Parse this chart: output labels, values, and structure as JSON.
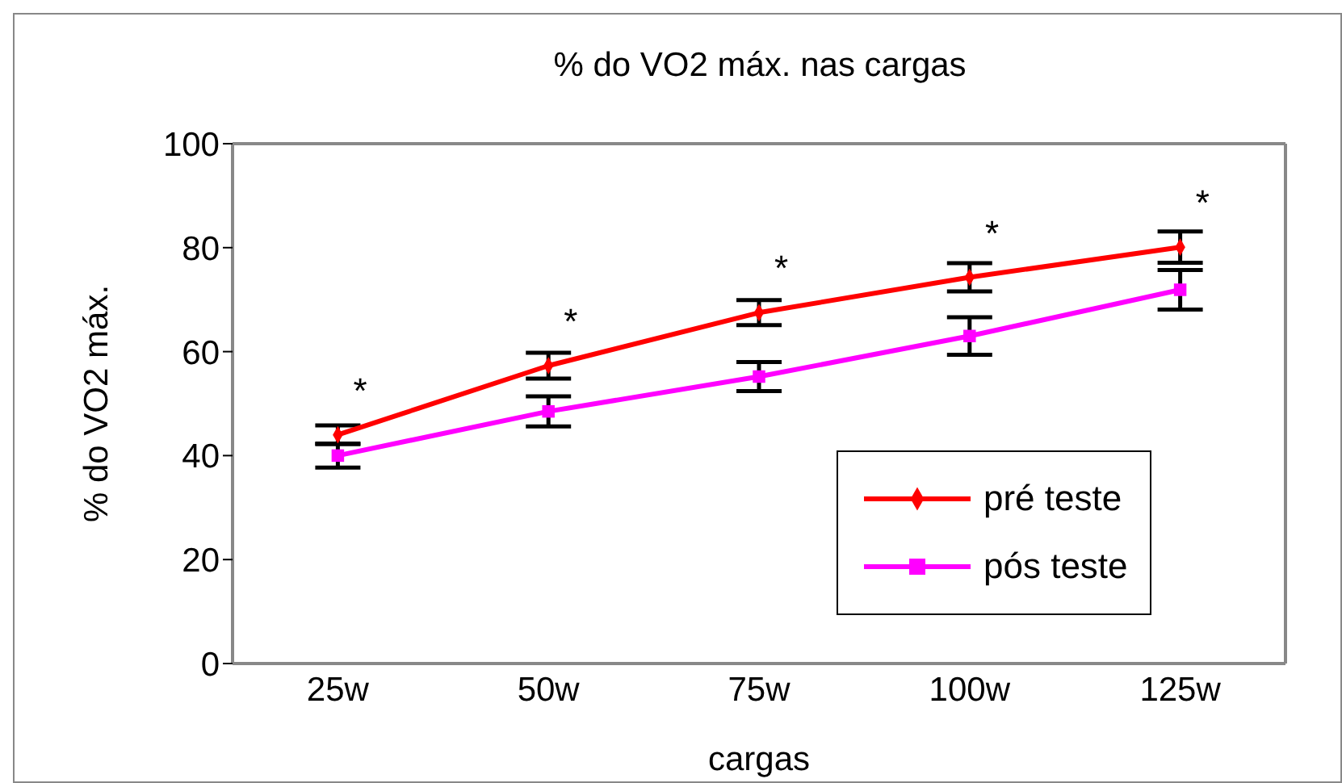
{
  "chart_data": {
    "type": "line",
    "title": "% do VO2 máx. nas cargas",
    "xlabel": "cargas",
    "ylabel": "% do VO2 máx.",
    "categories": [
      "25w",
      "50w",
      "75w",
      "100w",
      "125w"
    ],
    "ylim": [
      0,
      100
    ],
    "yticks": [
      0,
      20,
      40,
      60,
      80,
      100
    ],
    "legend": "bottom right",
    "line_style": "solid",
    "series": [
      {
        "name": "pré teste",
        "color": "#ff0000",
        "marker": "diamond",
        "values": [
          44,
          57.3,
          67.5,
          74.3,
          80.1
        ],
        "errors": [
          1.8,
          2.5,
          2.4,
          2.7,
          3
        ]
      },
      {
        "name": "pós teste",
        "color": "#ff00ff",
        "marker": "square",
        "values": [
          40,
          48.5,
          55.2,
          63,
          71.9
        ],
        "errors": [
          2.3,
          2.9,
          2.8,
          3.6,
          3.8
        ]
      }
    ],
    "annotations": [
      {
        "text": "*",
        "x": "25w",
        "y": 44
      },
      {
        "text": "*",
        "x": "50w",
        "y": 57.3
      },
      {
        "text": "*",
        "x": "75w",
        "y": 67.5
      },
      {
        "text": "*",
        "x": "100w",
        "y": 74.3
      },
      {
        "text": "*",
        "x": "125w",
        "y": 80.1
      }
    ]
  }
}
